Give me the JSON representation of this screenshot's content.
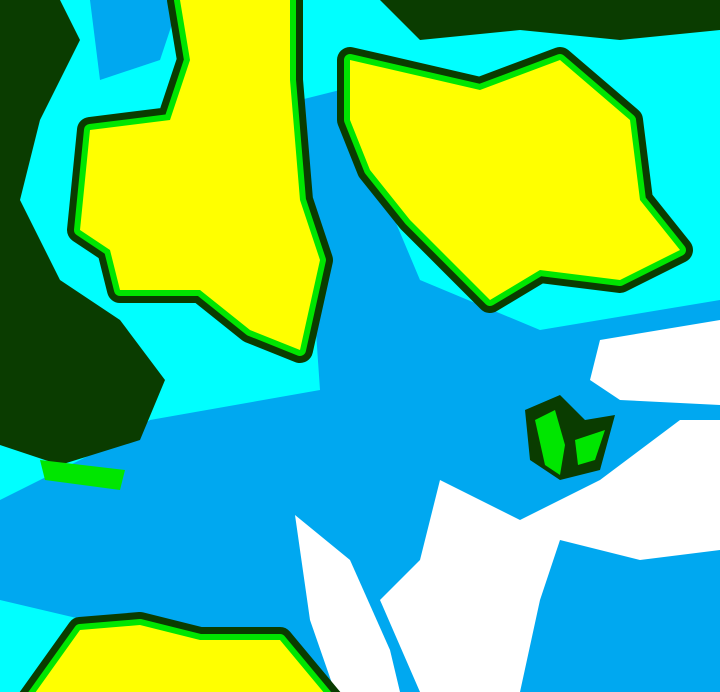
{
  "map": {
    "kind": "classified raster map",
    "colors": {
      "yellow": "#ffff00",
      "green": "#00e600",
      "dark_green": "#0a3c00",
      "cyan": "#00ffff",
      "blue": "#00a8f0",
      "white": "#ffffff"
    }
  }
}
